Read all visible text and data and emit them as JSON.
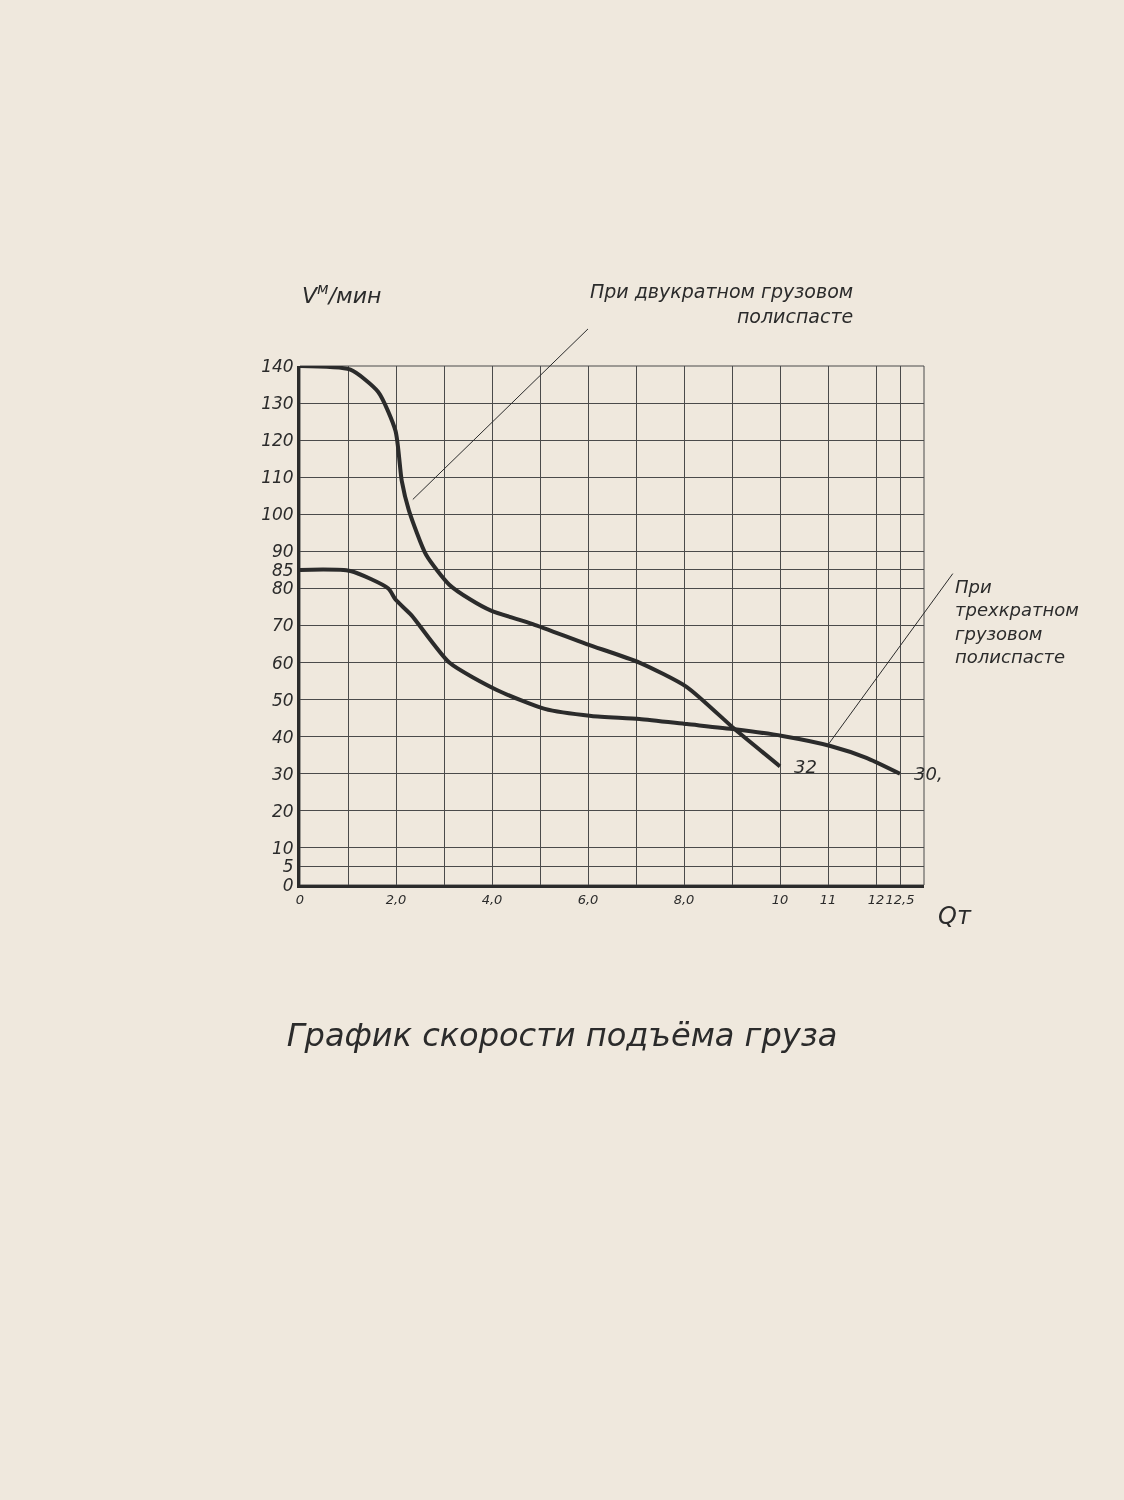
{
  "chart_data": {
    "type": "line",
    "title": "График скорости подъёма груза",
    "xlabel": "Qт",
    "ylabel": "V$^{м}$/мин",
    "xlim": [
      0,
      13
    ],
    "ylim": [
      0,
      140
    ],
    "xticks": [
      0,
      {
        "value": 1,
        "label": null
      },
      {
        "value": 2,
        "label": "2,0"
      },
      {
        "value": 3,
        "label": null
      },
      {
        "value": 4,
        "label": "4,0"
      },
      {
        "value": 5,
        "label": null
      },
      {
        "value": 6,
        "label": "6,0"
      },
      {
        "value": 7,
        "label": null
      },
      {
        "value": 8,
        "label": "8,0"
      },
      {
        "value": 9,
        "label": null
      },
      10,
      11,
      12,
      {
        "value": 12.5,
        "label": "12,5"
      },
      {
        "value": 13,
        "label": null
      }
    ],
    "yticks": [
      0,
      5,
      10,
      20,
      30,
      40,
      50,
      60,
      70,
      80,
      85,
      90,
      100,
      110,
      120,
      130,
      140
    ],
    "grid": true,
    "legend": false,
    "line_style": "solid",
    "series": [
      {
        "name": "При двукратном грузовом полиспасте",
        "color": "#2b2b2b",
        "x": [
          0,
          1.05,
          1.63,
          1.99,
          2.12,
          2.27,
          2.63,
          3.11,
          3.55,
          3.98,
          4.85,
          5.97,
          7.07,
          8.06,
          9.06,
          10
        ],
        "values": [
          140,
          139,
          133,
          122.5,
          109,
          101,
          89,
          81,
          77,
          74,
          70.4,
          65,
          60,
          53.4,
          42,
          32
        ]
      },
      {
        "name": "При трехкратном грузовом полиспасте",
        "color": "#2b2b2b",
        "x": [
          0,
          1.05,
          1.84,
          1.99,
          2.32,
          3.11,
          4.1,
          5.1,
          6.07,
          7.07,
          8.06,
          9.06,
          10.05,
          11.05,
          11.8,
          12.5
        ],
        "values": [
          85,
          84.7,
          80,
          77,
          72.8,
          60,
          52.6,
          47.5,
          45.6,
          44.8,
          43.4,
          42,
          40.2,
          37.5,
          34.3,
          30
        ]
      }
    ],
    "annotations": [
      {
        "text": "32",
        "x": 10,
        "y": 32
      },
      {
        "text": "30,",
        "x": 12.5,
        "y": 30
      }
    ]
  }
}
